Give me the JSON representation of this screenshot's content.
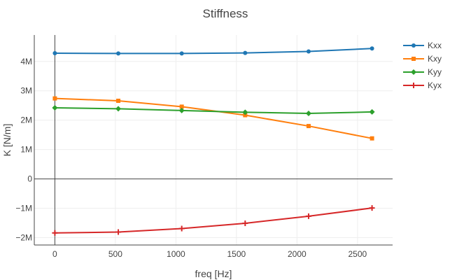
{
  "chart_data": {
    "type": "line",
    "title": "Stiffness",
    "xlabel": "freq [Hz]",
    "ylabel": "K [N/m]",
    "x": [
      0,
      524,
      1048,
      1572,
      2096,
      2620
    ],
    "xlim": [
      -170,
      2790
    ],
    "ylim": [
      -2250000,
      4900000
    ],
    "x_ticks": [
      0,
      500,
      1000,
      1500,
      2000,
      2500
    ],
    "x_tick_labels": [
      "0",
      "500",
      "1000",
      "1500",
      "2000",
      "2500"
    ],
    "y_ticks": [
      -2000000,
      -1000000,
      0,
      1000000,
      2000000,
      3000000,
      4000000
    ],
    "y_tick_labels": [
      "−2M",
      "−1M",
      "0",
      "1M",
      "2M",
      "3M",
      "4M"
    ],
    "grid": true,
    "legend_position": "top-right",
    "series": [
      {
        "name": "Kxx",
        "color": "#1f77b4",
        "marker": "circle",
        "values": [
          4280000,
          4270000,
          4270000,
          4290000,
          4340000,
          4440000
        ]
      },
      {
        "name": "Kxy",
        "color": "#ff7f0e",
        "marker": "square",
        "values": [
          2740000,
          2660000,
          2460000,
          2170000,
          1800000,
          1380000
        ]
      },
      {
        "name": "Kyy",
        "color": "#2ca02c",
        "marker": "diamond",
        "values": [
          2420000,
          2390000,
          2330000,
          2270000,
          2230000,
          2280000
        ]
      },
      {
        "name": "Kyx",
        "color": "#d62728",
        "marker": "cross",
        "values": [
          -1840000,
          -1810000,
          -1690000,
          -1510000,
          -1270000,
          -990000
        ]
      }
    ]
  }
}
